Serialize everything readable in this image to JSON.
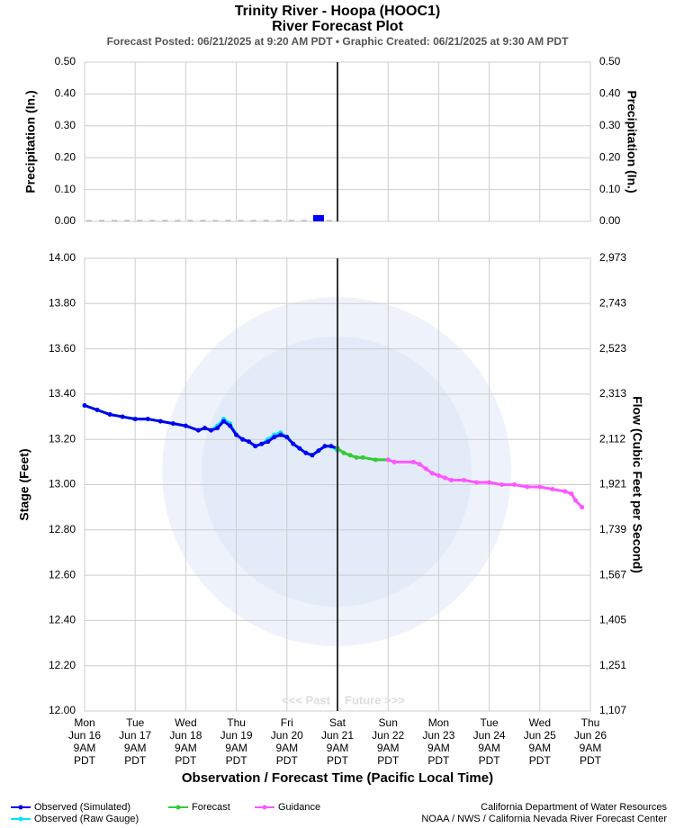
{
  "header": {
    "title": "Trinity River - Hoopa (HOOC1)",
    "subtitle": "River Forecast Plot",
    "info": "Forecast Posted: 06/21/2025 at 9:20 AM PDT  •  Graphic Created: 06/21/2025 at 9:30 AM PDT"
  },
  "chart_data": [
    {
      "type": "bar",
      "ylabel": "Precipitation (In.)",
      "y2label": "Precipitation (In.)",
      "xlim": [
        "2025-06-16T09:00",
        "2025-06-26T09:00"
      ],
      "ylim": [
        0,
        0.5
      ],
      "yticks": [
        {
          "value": 0,
          "label": "0.00"
        },
        {
          "value": 0.1,
          "label": "0.10"
        },
        {
          "value": 0.2,
          "label": "0.20"
        },
        {
          "value": 0.3,
          "label": "0.30"
        },
        {
          "value": 0.4,
          "label": "0.40"
        },
        {
          "value": 0.5,
          "label": "0.50"
        }
      ],
      "grid": true,
      "series": [
        {
          "color": "#0000ff",
          "x": [
            "2025-06-16T09:00",
            "2025-06-16T15:00",
            "2025-06-16T21:00",
            "2025-06-17T03:00",
            "2025-06-17T09:00",
            "2025-06-17T15:00",
            "2025-06-17T21:00",
            "2025-06-18T03:00",
            "2025-06-18T09:00",
            "2025-06-18T15:00",
            "2025-06-18T21:00",
            "2025-06-19T03:00",
            "2025-06-19T09:00",
            "2025-06-19T15:00",
            "2025-06-19T21:00",
            "2025-06-20T03:00",
            "2025-06-20T09:00",
            "2025-06-20T15:00",
            "2025-06-20T21:00",
            "2025-06-21T03:00"
          ],
          "values": [
            0,
            0,
            0,
            0,
            0,
            0,
            0,
            0,
            0,
            0,
            0,
            0,
            0,
            0,
            0,
            0,
            0,
            0,
            0.02,
            0
          ]
        }
      ]
    },
    {
      "type": "line",
      "ylabel": "Stage (Feet)",
      "y2label": "Flow (Cubic Feet per Second)",
      "xlabel": "Observation / Forecast Time (Pacific Local Time)",
      "xlim": [
        "2025-06-16T09:00",
        "2025-06-26T09:00"
      ],
      "xticks": [
        {
          "value": "2025-06-16T09:00",
          "label": [
            "Mon",
            "Jun 16",
            "9AM",
            "PDT"
          ]
        },
        {
          "value": "2025-06-17T09:00",
          "label": [
            "Tue",
            "Jun 17",
            "9AM",
            "PDT"
          ]
        },
        {
          "value": "2025-06-18T09:00",
          "label": [
            "Wed",
            "Jun 18",
            "9AM",
            "PDT"
          ]
        },
        {
          "value": "2025-06-19T09:00",
          "label": [
            "Thu",
            "Jun 19",
            "9AM",
            "PDT"
          ]
        },
        {
          "value": "2025-06-20T09:00",
          "label": [
            "Fri",
            "Jun 20",
            "9AM",
            "PDT"
          ]
        },
        {
          "value": "2025-06-21T09:00",
          "label": [
            "Sat",
            "Jun 21",
            "9AM",
            "PDT"
          ]
        },
        {
          "value": "2025-06-22T09:00",
          "label": [
            "Sun",
            "Jun 22",
            "9AM",
            "PDT"
          ]
        },
        {
          "value": "2025-06-23T09:00",
          "label": [
            "Mon",
            "Jun 23",
            "9AM",
            "PDT"
          ]
        },
        {
          "value": "2025-06-24T09:00",
          "label": [
            "Tue",
            "Jun 24",
            "9AM",
            "PDT"
          ]
        },
        {
          "value": "2025-06-25T09:00",
          "label": [
            "Wed",
            "Jun 25",
            "9AM",
            "PDT"
          ]
        },
        {
          "value": "2025-06-26T09:00",
          "label": [
            "Thu",
            "Jun 26",
            "9AM",
            "PDT"
          ]
        }
      ],
      "ylim": [
        12,
        14
      ],
      "yticks": [
        {
          "value": 12,
          "label": "12.00"
        },
        {
          "value": 12.2,
          "label": "12.20"
        },
        {
          "value": 12.4,
          "label": "12.40"
        },
        {
          "value": 12.6,
          "label": "12.60"
        },
        {
          "value": 12.8,
          "label": "12.80"
        },
        {
          "value": 13,
          "label": "13.00"
        },
        {
          "value": 13.2,
          "label": "13.20"
        },
        {
          "value": 13.4,
          "label": "13.40"
        },
        {
          "value": 13.6,
          "label": "13.60"
        },
        {
          "value": 13.8,
          "label": "13.80"
        },
        {
          "value": 14,
          "label": "14.00"
        }
      ],
      "y2tick_labels": [
        "1,107",
        "1,251",
        "1,405",
        "1,567",
        "1,739",
        "1,921",
        "2,112",
        "2,313",
        "2,523",
        "2,743",
        "2,973"
      ],
      "grid": true,
      "vline": "2025-06-21T09:00",
      "annotations": [
        "<<< Past",
        "Future >>>"
      ],
      "series": [
        {
          "name": "Observed (Raw Gauge)",
          "color": "#00e5ff",
          "x": [
            "2025-06-16T09:00",
            "2025-06-16T15:00",
            "2025-06-16T21:00",
            "2025-06-17T03:00",
            "2025-06-17T09:00",
            "2025-06-17T15:00",
            "2025-06-17T21:00",
            "2025-06-18T03:00",
            "2025-06-18T09:00",
            "2025-06-18T15:00",
            "2025-06-18T18:00",
            "2025-06-18T21:00",
            "2025-06-19T00:00",
            "2025-06-19T03:00",
            "2025-06-19T06:00",
            "2025-06-19T09:00",
            "2025-06-19T12:00",
            "2025-06-19T15:00",
            "2025-06-19T18:00",
            "2025-06-19T21:00",
            "2025-06-20T00:00",
            "2025-06-20T03:00",
            "2025-06-20T06:00",
            "2025-06-20T09:00",
            "2025-06-20T12:00",
            "2025-06-20T15:00",
            "2025-06-20T18:00",
            "2025-06-20T21:00",
            "2025-06-21T00:00",
            "2025-06-21T03:00",
            "2025-06-21T06:00",
            "2025-06-21T09:00"
          ],
          "values": [
            13.35,
            13.33,
            13.31,
            13.3,
            13.29,
            13.29,
            13.28,
            13.27,
            13.26,
            13.24,
            13.25,
            13.24,
            13.26,
            13.29,
            13.27,
            13.22,
            13.2,
            13.19,
            13.17,
            13.18,
            13.2,
            13.22,
            13.23,
            13.21,
            13.18,
            13.16,
            13.14,
            13.13,
            13.15,
            13.17,
            13.17,
            13.15
          ]
        },
        {
          "name": "Observed (Simulated)",
          "color": "#0000ee",
          "x": [
            "2025-06-16T09:00",
            "2025-06-16T15:00",
            "2025-06-16T21:00",
            "2025-06-17T03:00",
            "2025-06-17T09:00",
            "2025-06-17T15:00",
            "2025-06-17T21:00",
            "2025-06-18T03:00",
            "2025-06-18T09:00",
            "2025-06-18T15:00",
            "2025-06-18T18:00",
            "2025-06-18T21:00",
            "2025-06-19T00:00",
            "2025-06-19T03:00",
            "2025-06-19T06:00",
            "2025-06-19T09:00",
            "2025-06-19T12:00",
            "2025-06-19T15:00",
            "2025-06-19T18:00",
            "2025-06-19T21:00",
            "2025-06-20T00:00",
            "2025-06-20T03:00",
            "2025-06-20T06:00",
            "2025-06-20T09:00",
            "2025-06-20T12:00",
            "2025-06-20T15:00",
            "2025-06-20T18:00",
            "2025-06-20T21:00",
            "2025-06-21T00:00",
            "2025-06-21T03:00",
            "2025-06-21T06:00",
            "2025-06-21T09:00"
          ],
          "values": [
            13.35,
            13.33,
            13.31,
            13.3,
            13.29,
            13.29,
            13.28,
            13.27,
            13.26,
            13.24,
            13.25,
            13.24,
            13.25,
            13.28,
            13.26,
            13.22,
            13.2,
            13.19,
            13.17,
            13.18,
            13.19,
            13.21,
            13.22,
            13.21,
            13.18,
            13.16,
            13.14,
            13.13,
            13.15,
            13.17,
            13.17,
            13.16
          ]
        },
        {
          "name": "Forecast",
          "color": "#33cc33",
          "x": [
            "2025-06-21T09:00",
            "2025-06-21T12:00",
            "2025-06-21T15:00",
            "2025-06-21T18:00",
            "2025-06-21T21:00",
            "2025-06-22T03:00",
            "2025-06-22T09:00"
          ],
          "values": [
            13.16,
            13.14,
            13.13,
            13.12,
            13.12,
            13.11,
            13.11
          ]
        },
        {
          "name": "Guidance",
          "color": "#ff55ff",
          "x": [
            "2025-06-22T09:00",
            "2025-06-22T12:00",
            "2025-06-22T21:00",
            "2025-06-23T00:00",
            "2025-06-23T03:00",
            "2025-06-23T06:00",
            "2025-06-23T09:00",
            "2025-06-23T12:00",
            "2025-06-23T15:00",
            "2025-06-23T21:00",
            "2025-06-24T03:00",
            "2025-06-24T09:00",
            "2025-06-24T15:00",
            "2025-06-24T21:00",
            "2025-06-25T03:00",
            "2025-06-25T09:00",
            "2025-06-25T15:00",
            "2025-06-25T21:00",
            "2025-06-26T00:00",
            "2025-06-26T02:00",
            "2025-06-26T05:00"
          ],
          "values": [
            13.11,
            13.1,
            13.1,
            13.09,
            13.07,
            13.05,
            13.04,
            13.03,
            13.02,
            13.02,
            13.01,
            13.01,
            13.0,
            13.0,
            12.99,
            12.99,
            12.98,
            12.97,
            12.96,
            12.93,
            12.9
          ]
        }
      ]
    }
  ],
  "footer": {
    "credits": [
      "California Department of Water Resources",
      "NOAA / NWS / California Nevada River Forecast Center"
    ]
  }
}
